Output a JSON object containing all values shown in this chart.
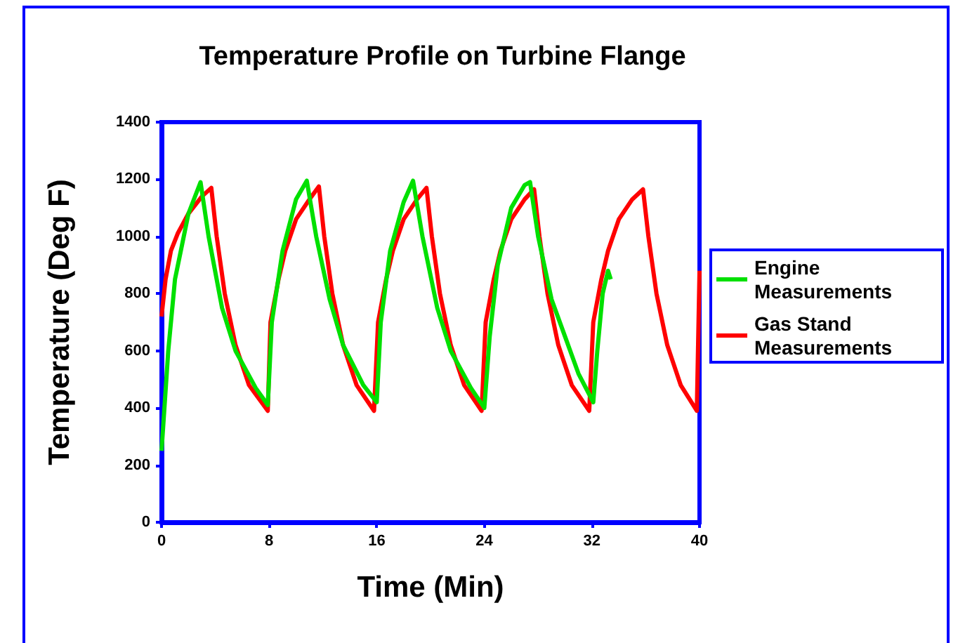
{
  "chart_data": {
    "type": "line",
    "title": "Temperature Profile on Turbine Flange",
    "xlabel": "Time (Min)",
    "ylabel": "Temperature (Deg F)",
    "xlim": [
      0,
      40
    ],
    "xticks": [
      0,
      8,
      16,
      24,
      32,
      40
    ],
    "ylim": [
      0,
      1400
    ],
    "yticks": [
      0,
      200,
      400,
      600,
      800,
      1000,
      1200,
      1400
    ],
    "grid": false,
    "legend": "right",
    "marker": "none",
    "line_style": "solid",
    "series": [
      {
        "name": "Engine Measurements",
        "color": "#00e000",
        "x": [
          0,
          0.5,
          1,
          2,
          2.9,
          3.5,
          4.5,
          5.5,
          7,
          7.9,
          8.2,
          9,
          10,
          10.8,
          11.5,
          12.5,
          13.5,
          15,
          16,
          16.3,
          17,
          18,
          18.7,
          19.4,
          20.5,
          21.5,
          23,
          24,
          24.4,
          25,
          26,
          27,
          27.4,
          28,
          29,
          30,
          31,
          32.1,
          32.4,
          32.8,
          33.2,
          33.4
        ],
        "values": [
          250,
          600,
          850,
          1080,
          1190,
          1000,
          750,
          600,
          470,
          410,
          700,
          950,
          1130,
          1195,
          1000,
          780,
          620,
          480,
          420,
          700,
          950,
          1120,
          1195,
          1000,
          750,
          600,
          470,
          400,
          650,
          900,
          1100,
          1180,
          1190,
          1000,
          780,
          650,
          520,
          420,
          600,
          800,
          880,
          850
        ]
      },
      {
        "name": "Gas Stand Measurements",
        "color": "#ff0000",
        "x": [
          0,
          0.3,
          0.7,
          1.2,
          2,
          3,
          3.7,
          4.1,
          4.7,
          5.5,
          6.5,
          7.9,
          8.1,
          8.7,
          9.2,
          10,
          11,
          11.7,
          12.1,
          12.7,
          13.5,
          14.5,
          15.8,
          16.1,
          16.7,
          17.2,
          18,
          19,
          19.7,
          20.1,
          20.7,
          21.5,
          22.5,
          23.8,
          24.1,
          24.7,
          25.2,
          26,
          27,
          27.7,
          28.1,
          28.7,
          29.5,
          30.5,
          31.8,
          32.1,
          32.7,
          33.2,
          34,
          35,
          35.8,
          36.2,
          36.8,
          37.6,
          38.6,
          39.8,
          40
        ],
        "values": [
          720,
          850,
          950,
          1010,
          1080,
          1140,
          1170,
          1000,
          800,
          620,
          480,
          390,
          700,
          850,
          950,
          1060,
          1130,
          1175,
          1000,
          800,
          620,
          480,
          390,
          700,
          850,
          950,
          1060,
          1130,
          1170,
          1000,
          800,
          620,
          480,
          390,
          700,
          850,
          950,
          1060,
          1130,
          1165,
          1000,
          800,
          620,
          480,
          390,
          700,
          850,
          950,
          1060,
          1130,
          1165,
          1000,
          800,
          620,
          480,
          390,
          880
        ]
      }
    ]
  }
}
